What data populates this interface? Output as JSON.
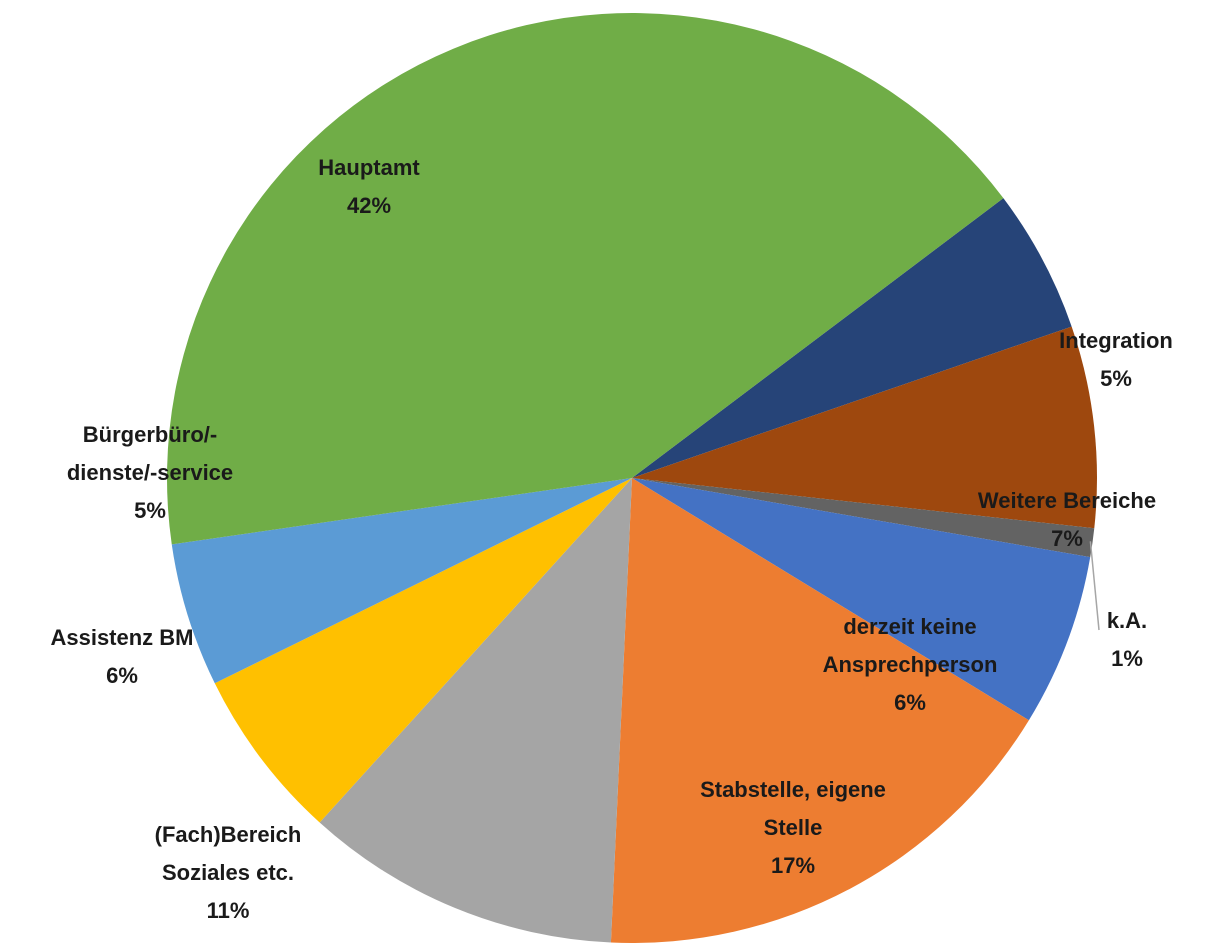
{
  "chart_data": {
    "type": "pie",
    "title": "",
    "start_angle_deg": 53,
    "direction": "clockwise",
    "slices": [
      {
        "label": "Integration",
        "value_label": "5%",
        "value": 5,
        "color": "#264478"
      },
      {
        "label": "Weitere Bereiche",
        "value_label": "7%",
        "value": 7,
        "color": "#9e480e"
      },
      {
        "label": "k.A.",
        "value_label": "1%",
        "value": 1,
        "color": "#636363"
      },
      {
        "label": "derzeit keine Ansprechperson",
        "value_label": "6%",
        "value": 6,
        "color": "#4472c4"
      },
      {
        "label": "Stabstelle, eigene Stelle",
        "value_label": "17%",
        "value": 17,
        "color": "#ed7d31"
      },
      {
        "label": "(Fach)Bereich Soziales etc.",
        "value_label": "11%",
        "value": 11,
        "color": "#a5a5a5"
      },
      {
        "label": "Assistenz BM",
        "value_label": "6%",
        "value": 6,
        "color": "#ffc000"
      },
      {
        "label": "Bürgerbüro/-dienste/-service",
        "value_label": "5%",
        "value": 5,
        "color": "#5b9bd5"
      },
      {
        "label": "Hauptamt",
        "value_label": "42%",
        "value": 42,
        "color": "#70ad47"
      }
    ],
    "label_lines": [
      [
        "Integration",
        "5%"
      ],
      [
        "Weitere Bereiche",
        "7%"
      ],
      [
        "k.A.",
        "1%"
      ],
      [
        "derzeit keine",
        "Ansprechperson",
        "6%"
      ],
      [
        "Stabstelle, eigene",
        "Stelle",
        "17%"
      ],
      [
        "(Fach)Bereich",
        "Soziales etc.",
        "11%"
      ],
      [
        "Assistenz BM",
        "6%"
      ],
      [
        "Bürgerbüro/-",
        "dienste/-service",
        "5%"
      ],
      [
        "Hauptamt",
        "42%"
      ]
    ],
    "legend": "none",
    "data_labels": "category and percent"
  }
}
